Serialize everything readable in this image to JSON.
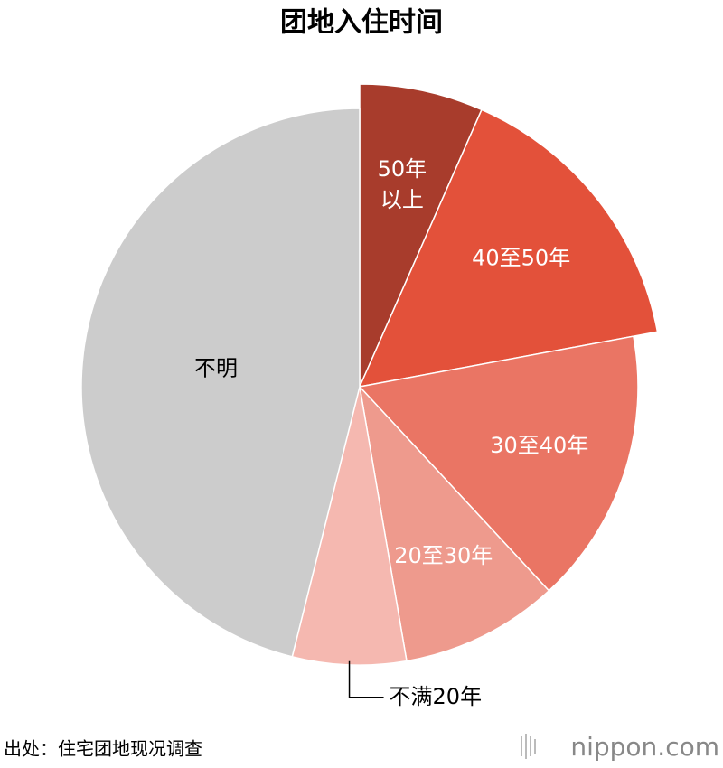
{
  "chart_data": {
    "type": "pie",
    "title": "团地入住时间",
    "categories": [
      "50年以上",
      "40至50年",
      "30至40年",
      "20至30年",
      "不满20年",
      "不明"
    ],
    "values": [
      6.6,
      15.5,
      16.0,
      9.2,
      6.6,
      46.1
    ],
    "colors": [
      "#a83c2c",
      "#e3513a",
      "#ea7564",
      "#ee9a8d",
      "#f5b8b0",
      "#cccccc"
    ],
    "label_colors": [
      "#ffffff",
      "#ffffff",
      "#ffffff",
      "#ffffff",
      "#000000",
      "#000000"
    ],
    "exploded": [
      0,
      1
    ],
    "outside_labels": [
      4
    ],
    "source": "出处：住宅团地现况调查",
    "logo": "nippon.com"
  }
}
